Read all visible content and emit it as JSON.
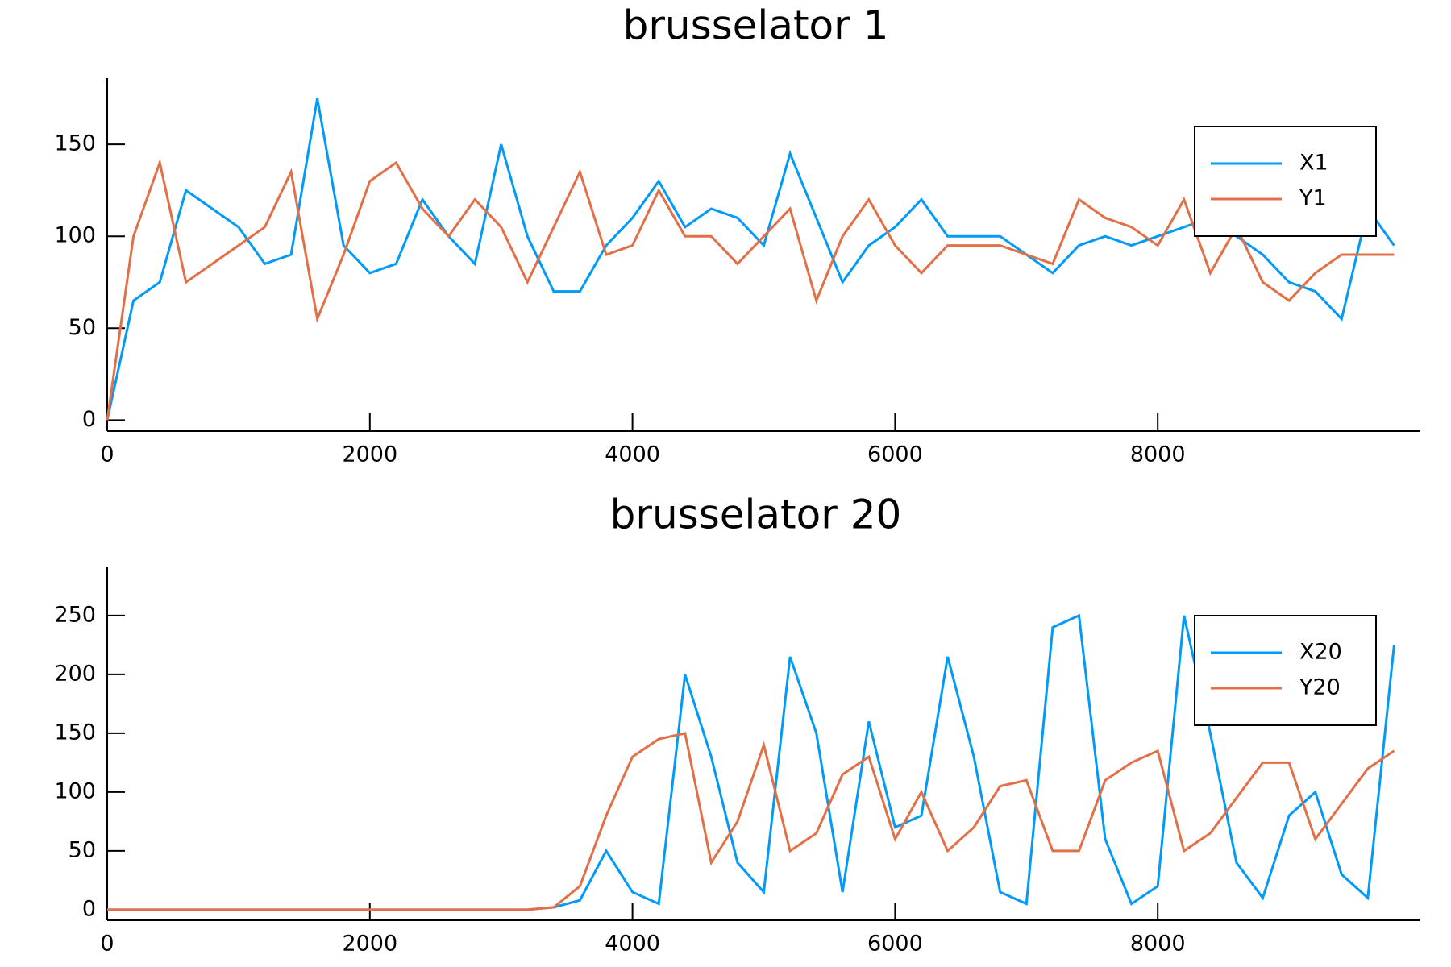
{
  "chart_data": [
    {
      "type": "line",
      "title": "brusselator 1",
      "x": [
        0,
        200,
        400,
        600,
        800,
        1000,
        1200,
        1400,
        1600,
        1800,
        2000,
        2200,
        2400,
        2600,
        2800,
        3000,
        3200,
        3400,
        3600,
        3800,
        4000,
        4200,
        4400,
        4600,
        4800,
        5000,
        5200,
        5400,
        5600,
        5800,
        6000,
        6200,
        6400,
        6600,
        6800,
        7000,
        7200,
        7400,
        7600,
        7800,
        8000,
        8200,
        8400,
        8600,
        8800,
        9000,
        9200,
        9400,
        9600,
        9800
      ],
      "series": [
        {
          "name": "X1",
          "color": "#009af9",
          "values": [
            0,
            65,
            75,
            125,
            115,
            105,
            85,
            90,
            175,
            95,
            80,
            85,
            120,
            100,
            85,
            150,
            100,
            70,
            70,
            95,
            110,
            130,
            105,
            115,
            110,
            95,
            145,
            110,
            75,
            95,
            105,
            120,
            100,
            100,
            100,
            90,
            80,
            95,
            100,
            95,
            100,
            105,
            110,
            100,
            90,
            75,
            70,
            55,
            115,
            95
          ]
        },
        {
          "name": "Y1",
          "color": "#e26f46",
          "values": [
            0,
            100,
            140,
            75,
            85,
            95,
            105,
            135,
            55,
            90,
            130,
            140,
            115,
            100,
            120,
            105,
            75,
            105,
            135,
            90,
            95,
            125,
            100,
            100,
            85,
            100,
            115,
            65,
            100,
            120,
            95,
            80,
            95,
            95,
            95,
            90,
            85,
            120,
            110,
            105,
            95,
            120,
            80,
            105,
            75,
            65,
            80,
            90,
            90,
            90
          ]
        }
      ],
      "xlim": [
        0,
        10000
      ],
      "ylim": [
        -6,
        186
      ],
      "xticks": [
        0,
        2000,
        4000,
        6000,
        8000
      ],
      "yticks": [
        0,
        50,
        100,
        150
      ],
      "legend": "top-right"
    },
    {
      "type": "line",
      "title": "brusselator 20",
      "x": [
        0,
        200,
        400,
        600,
        800,
        1000,
        1200,
        1400,
        1600,
        1800,
        2000,
        2200,
        2400,
        2600,
        2800,
        3000,
        3200,
        3400,
        3600,
        3800,
        4000,
        4200,
        4400,
        4600,
        4800,
        5000,
        5200,
        5400,
        5600,
        5800,
        6000,
        6200,
        6400,
        6600,
        6800,
        7000,
        7200,
        7400,
        7600,
        7800,
        8000,
        8200,
        8400,
        8600,
        8800,
        9000,
        9200,
        9400,
        9600,
        9800
      ],
      "series": [
        {
          "name": "X20",
          "color": "#009af9",
          "values": [
            0,
            0,
            0,
            0,
            0,
            0,
            0,
            0,
            0,
            0,
            0,
            0,
            0,
            0,
            0,
            0,
            0,
            2,
            8,
            50,
            15,
            5,
            200,
            130,
            40,
            15,
            215,
            150,
            15,
            160,
            70,
            80,
            215,
            130,
            15,
            5,
            240,
            250,
            60,
            5,
            20,
            250,
            150,
            40,
            10,
            80,
            100,
            30,
            10,
            225
          ]
        },
        {
          "name": "Y20",
          "color": "#e26f46",
          "values": [
            0,
            0,
            0,
            0,
            0,
            0,
            0,
            0,
            0,
            0,
            0,
            0,
            0,
            0,
            0,
            0,
            0,
            2,
            20,
            80,
            130,
            145,
            150,
            40,
            75,
            140,
            50,
            65,
            115,
            130,
            60,
            100,
            50,
            70,
            105,
            110,
            50,
            50,
            110,
            125,
            135,
            50,
            65,
            95,
            125,
            125,
            60,
            90,
            120,
            135
          ]
        }
      ],
      "xlim": [
        0,
        10000
      ],
      "ylim": [
        -9,
        291
      ],
      "xticks": [
        0,
        2000,
        4000,
        6000,
        8000
      ],
      "yticks": [
        0,
        50,
        100,
        150,
        200,
        250
      ],
      "legend": "top-right"
    }
  ]
}
